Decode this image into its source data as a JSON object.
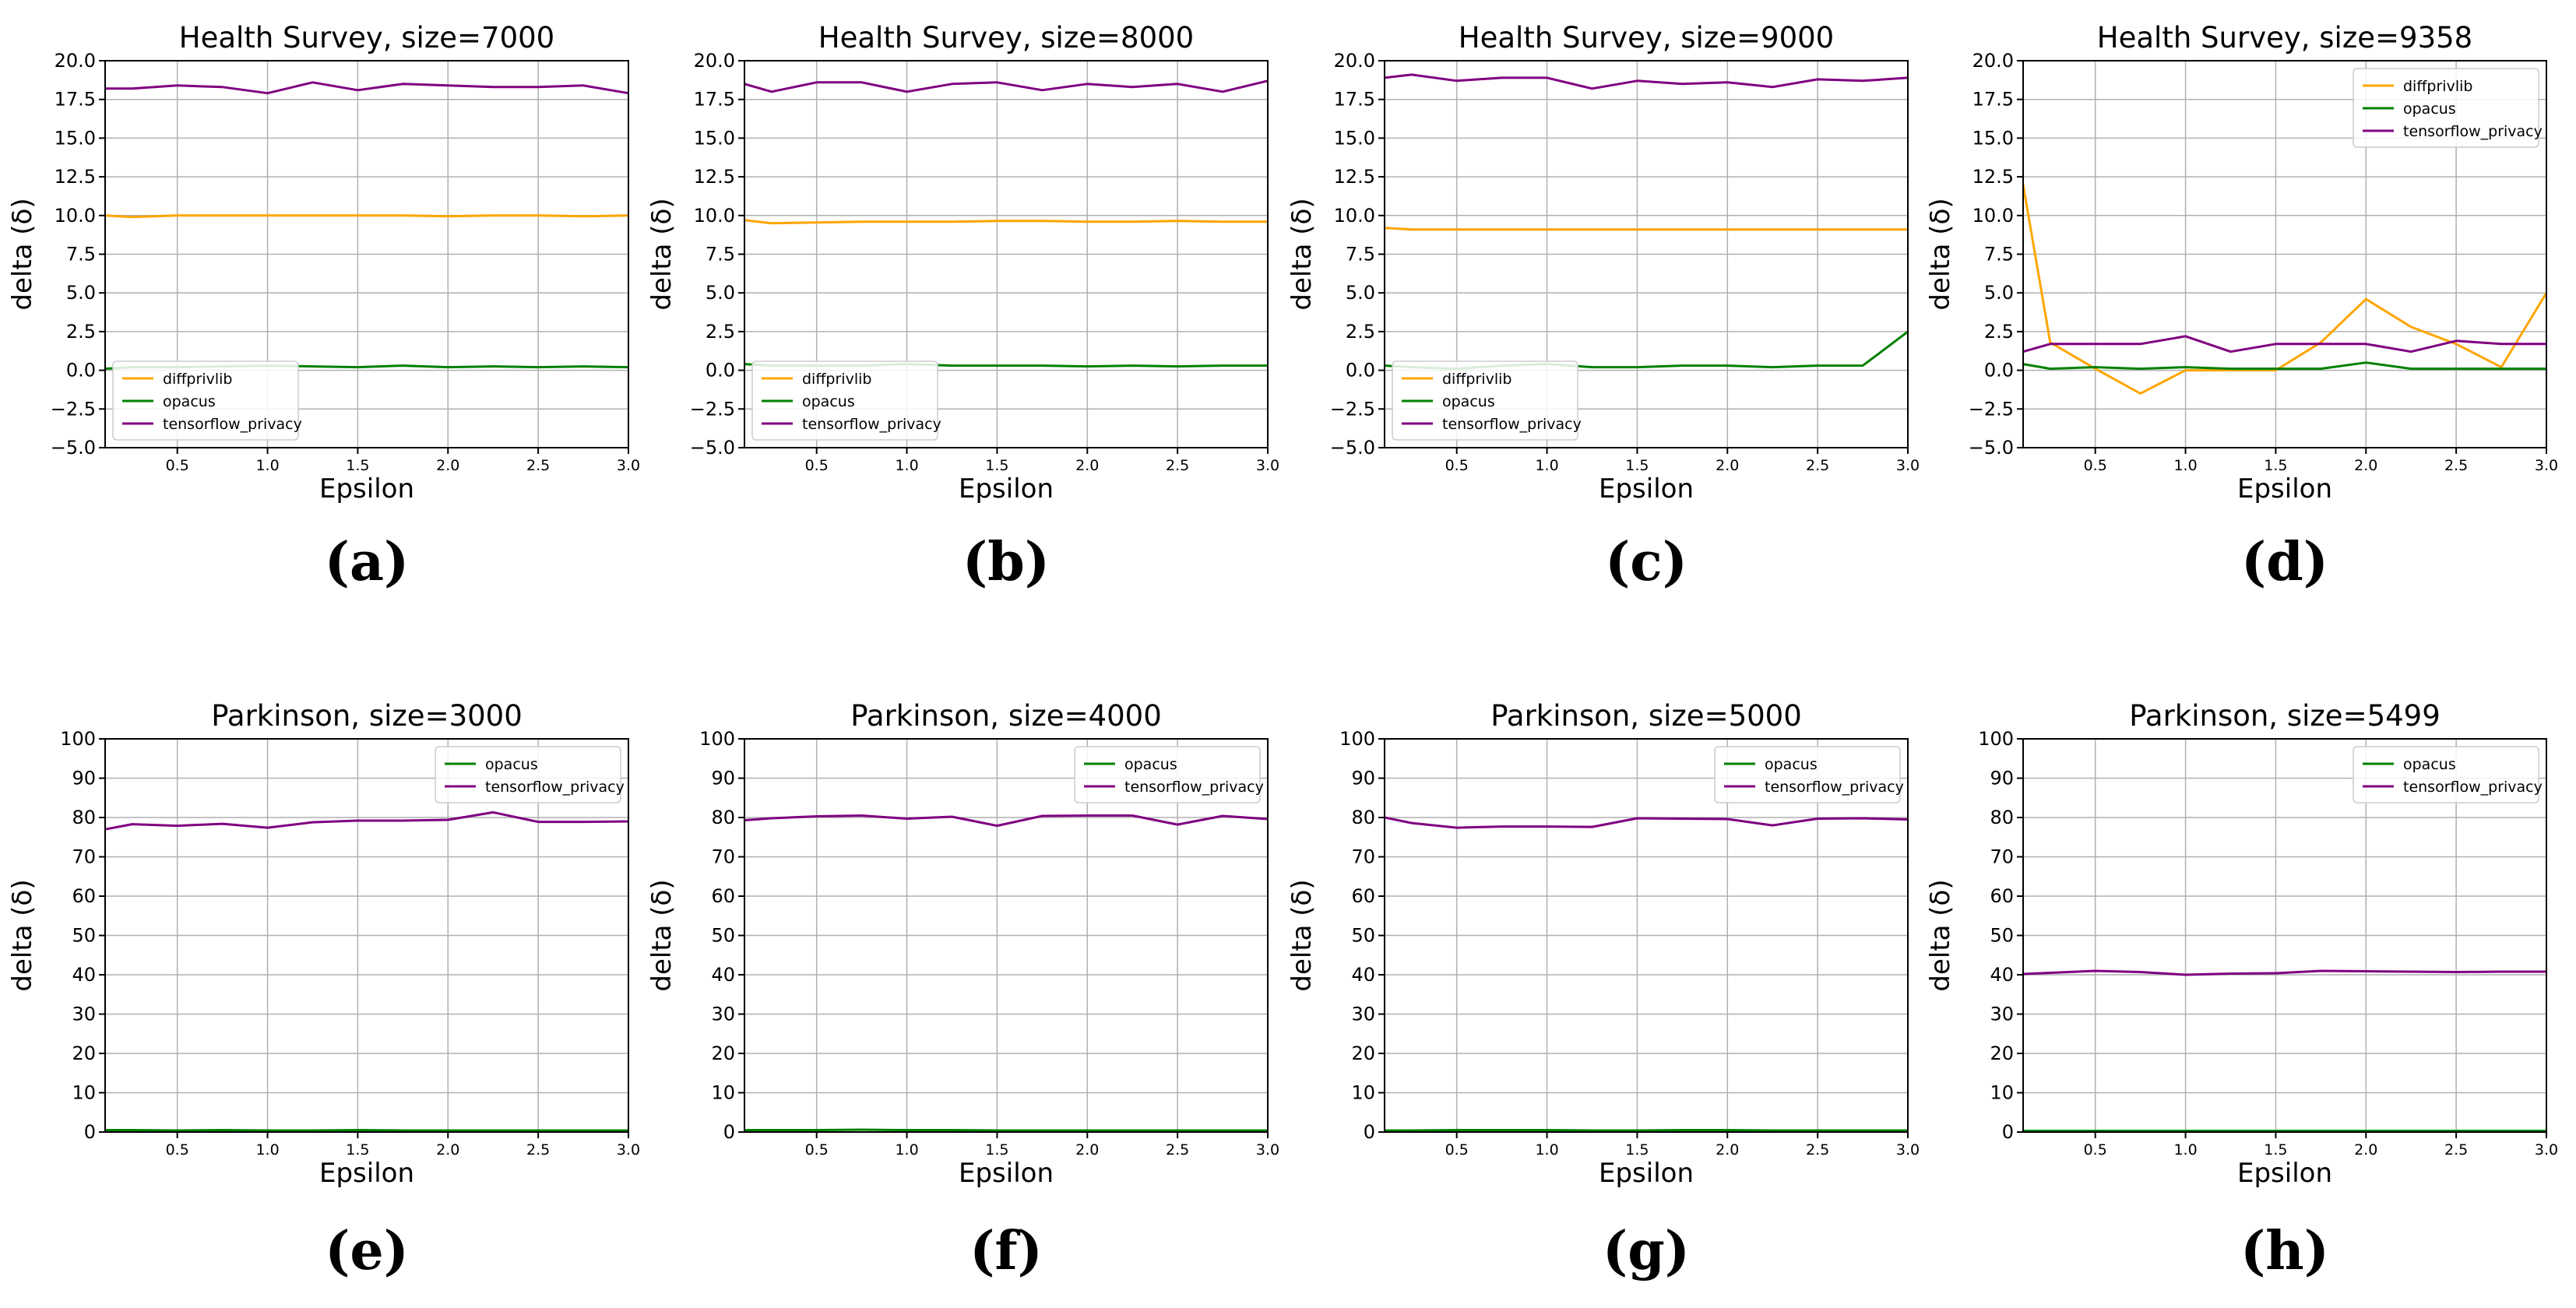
{
  "colors": {
    "diffprivlib": "#FFA500",
    "opacus": "#008000",
    "tensorflow_privacy": "#800080",
    "grid": "#b0b0b0"
  },
  "chart_data": [
    {
      "type": "line",
      "panel": "(a)",
      "title": "Health Survey, size=7000",
      "xlabel": "Epsilon",
      "ylabel": "delta (δ)",
      "xlim": [
        0.1,
        3.0
      ],
      "ylim": [
        -5.0,
        20.0
      ],
      "xticks": [
        "0.5",
        "1.0",
        "1.5",
        "2.0",
        "2.5",
        "3.0"
      ],
      "yticks": [
        "−5.0",
        "−2.5",
        "0.0",
        "2.5",
        "5.0",
        "7.5",
        "10.0",
        "12.5",
        "15.0",
        "17.5",
        "20.0"
      ],
      "grid": true,
      "legend": "lower-left",
      "x": [
        0.1,
        0.25,
        0.5,
        0.75,
        1.0,
        1.25,
        1.5,
        1.75,
        2.0,
        2.25,
        2.5,
        2.75,
        3.0
      ],
      "series": [
        {
          "name": "diffprivlib",
          "values": [
            10.0,
            9.9,
            10.0,
            10.0,
            10.0,
            10.0,
            10.0,
            10.0,
            9.95,
            10.0,
            10.0,
            9.95,
            10.0
          ]
        },
        {
          "name": "opacus",
          "values": [
            0.1,
            0.2,
            0.2,
            0.25,
            0.3,
            0.25,
            0.2,
            0.3,
            0.2,
            0.25,
            0.2,
            0.25,
            0.2
          ]
        },
        {
          "name": "tensorflow_privacy",
          "values": [
            18.2,
            18.2,
            18.4,
            18.3,
            17.9,
            18.6,
            18.1,
            18.5,
            18.4,
            18.3,
            18.3,
            18.4,
            17.9
          ]
        }
      ]
    },
    {
      "type": "line",
      "panel": "(b)",
      "title": "Health Survey, size=8000",
      "xlabel": "Epsilon",
      "ylabel": "delta (δ)",
      "xlim": [
        0.1,
        3.0
      ],
      "ylim": [
        -5.0,
        20.0
      ],
      "xticks": [
        "0.5",
        "1.0",
        "1.5",
        "2.0",
        "2.5",
        "3.0"
      ],
      "yticks": [
        "−5.0",
        "−2.5",
        "0.0",
        "2.5",
        "5.0",
        "7.5",
        "10.0",
        "12.5",
        "15.0",
        "17.5",
        "20.0"
      ],
      "grid": true,
      "legend": "lower-left",
      "x": [
        0.1,
        0.25,
        0.5,
        0.75,
        1.0,
        1.25,
        1.5,
        1.75,
        2.0,
        2.25,
        2.5,
        2.75,
        3.0
      ],
      "series": [
        {
          "name": "diffprivlib",
          "values": [
            9.7,
            9.5,
            9.55,
            9.6,
            9.6,
            9.6,
            9.65,
            9.65,
            9.6,
            9.6,
            9.65,
            9.6,
            9.6
          ]
        },
        {
          "name": "opacus",
          "values": [
            0.4,
            0.3,
            0.3,
            0.3,
            0.4,
            0.3,
            0.3,
            0.3,
            0.25,
            0.3,
            0.25,
            0.3,
            0.3
          ]
        },
        {
          "name": "tensorflow_privacy",
          "values": [
            18.5,
            18.0,
            18.6,
            18.6,
            18.0,
            18.5,
            18.6,
            18.1,
            18.5,
            18.3,
            18.5,
            18.0,
            18.7
          ]
        }
      ]
    },
    {
      "type": "line",
      "panel": "(c)",
      "title": "Health Survey, size=9000",
      "xlabel": "Epsilon",
      "ylabel": "delta (δ)",
      "xlim": [
        0.1,
        3.0
      ],
      "ylim": [
        -5.0,
        20.0
      ],
      "xticks": [
        "0.5",
        "1.0",
        "1.5",
        "2.0",
        "2.5",
        "3.0"
      ],
      "yticks": [
        "−5.0",
        "−2.5",
        "0.0",
        "2.5",
        "5.0",
        "7.5",
        "10.0",
        "12.5",
        "15.0",
        "17.5",
        "20.0"
      ],
      "grid": true,
      "legend": "lower-left",
      "x": [
        0.1,
        0.25,
        0.5,
        0.75,
        1.0,
        1.25,
        1.5,
        1.75,
        2.0,
        2.25,
        2.5,
        2.75,
        3.0
      ],
      "series": [
        {
          "name": "diffprivlib",
          "values": [
            9.2,
            9.1,
            9.1,
            9.1,
            9.1,
            9.1,
            9.1,
            9.1,
            9.1,
            9.1,
            9.1,
            9.1,
            9.1
          ]
        },
        {
          "name": "opacus",
          "values": [
            0.3,
            0.2,
            0.1,
            0.3,
            0.4,
            0.2,
            0.2,
            0.3,
            0.3,
            0.2,
            0.3,
            0.3,
            2.5
          ]
        },
        {
          "name": "tensorflow_privacy",
          "values": [
            18.9,
            19.1,
            18.7,
            18.9,
            18.9,
            18.2,
            18.7,
            18.5,
            18.6,
            18.3,
            18.8,
            18.7,
            18.9
          ]
        }
      ]
    },
    {
      "type": "line",
      "panel": "(d)",
      "title": "Health Survey, size=9358",
      "xlabel": "Epsilon",
      "ylabel": "delta (δ)",
      "xlim": [
        0.1,
        3.0
      ],
      "ylim": [
        -5.0,
        20.0
      ],
      "xticks": [
        "0.5",
        "1.0",
        "1.5",
        "2.0",
        "2.5",
        "3.0"
      ],
      "yticks": [
        "−5.0",
        "−2.5",
        "0.0",
        "2.5",
        "5.0",
        "7.5",
        "10.0",
        "12.5",
        "15.0",
        "17.5",
        "20.0"
      ],
      "grid": true,
      "legend": "top-right",
      "x": [
        0.1,
        0.25,
        0.5,
        0.75,
        1.0,
        1.25,
        1.5,
        1.75,
        2.0,
        2.25,
        2.5,
        2.75,
        3.0
      ],
      "series": [
        {
          "name": "diffprivlib",
          "values": [
            12.0,
            1.8,
            0.1,
            -1.5,
            0.0,
            0.0,
            0.0,
            1.8,
            4.6,
            2.8,
            1.7,
            0.2,
            5.0
          ]
        },
        {
          "name": "opacus",
          "values": [
            0.4,
            0.1,
            0.2,
            0.1,
            0.2,
            0.1,
            0.1,
            0.1,
            0.5,
            0.1,
            0.1,
            0.1,
            0.1
          ]
        },
        {
          "name": "tensorflow_privacy",
          "values": [
            1.2,
            1.7,
            1.7,
            1.7,
            2.2,
            1.2,
            1.7,
            1.7,
            1.7,
            1.2,
            1.9,
            1.7,
            1.7
          ]
        }
      ]
    },
    {
      "type": "line",
      "panel": "(e)",
      "title": "Parkinson, size=3000",
      "xlabel": "Epsilon",
      "ylabel": "delta (δ)",
      "xlim": [
        0.1,
        3.0
      ],
      "ylim": [
        0,
        100
      ],
      "xticks": [
        "0.5",
        "1.0",
        "1.5",
        "2.0",
        "2.5",
        "3.0"
      ],
      "yticks": [
        "0",
        "10",
        "20",
        "30",
        "40",
        "50",
        "60",
        "70",
        "80",
        "90",
        "100"
      ],
      "grid": true,
      "legend": "top-right",
      "x": [
        0.1,
        0.25,
        0.5,
        0.75,
        1.0,
        1.25,
        1.5,
        1.75,
        2.0,
        2.25,
        2.5,
        2.75,
        3.0
      ],
      "series": [
        {
          "name": "opacus",
          "values": [
            0.5,
            0.5,
            0.4,
            0.5,
            0.4,
            0.4,
            0.5,
            0.4,
            0.4,
            0.4,
            0.4,
            0.4,
            0.4
          ]
        },
        {
          "name": "tensorflow_privacy",
          "values": [
            77,
            78.3,
            77.9,
            78.4,
            77.4,
            78.8,
            79.2,
            79.2,
            79.4,
            81.3,
            78.9,
            78.9,
            79.0
          ]
        }
      ]
    },
    {
      "type": "line",
      "panel": "(f)",
      "title": "Parkinson, size=4000",
      "xlabel": "Epsilon",
      "ylabel": "delta (δ)",
      "xlim": [
        0.1,
        3.0
      ],
      "ylim": [
        0,
        100
      ],
      "xticks": [
        "0.5",
        "1.0",
        "1.5",
        "2.0",
        "2.5",
        "3.0"
      ],
      "yticks": [
        "0",
        "10",
        "20",
        "30",
        "40",
        "50",
        "60",
        "70",
        "80",
        "90",
        "100"
      ],
      "grid": true,
      "legend": "top-right",
      "x": [
        0.1,
        0.25,
        0.5,
        0.75,
        1.0,
        1.25,
        1.5,
        1.75,
        2.0,
        2.25,
        2.5,
        2.75,
        3.0
      ],
      "series": [
        {
          "name": "opacus",
          "values": [
            0.5,
            0.5,
            0.5,
            0.6,
            0.5,
            0.5,
            0.4,
            0.4,
            0.4,
            0.4,
            0.4,
            0.4,
            0.4
          ]
        },
        {
          "name": "tensorflow_privacy",
          "values": [
            79.3,
            79.8,
            80.3,
            80.5,
            79.7,
            80.2,
            77.9,
            80.4,
            80.5,
            80.5,
            78.2,
            80.4,
            79.6
          ]
        }
      ]
    },
    {
      "type": "line",
      "panel": "(g)",
      "title": "Parkinson, size=5000",
      "xlabel": "Epsilon",
      "ylabel": "delta (δ)",
      "xlim": [
        0.1,
        3.0
      ],
      "ylim": [
        0,
        100
      ],
      "xticks": [
        "0.5",
        "1.0",
        "1.5",
        "2.0",
        "2.5",
        "3.0"
      ],
      "yticks": [
        "0",
        "10",
        "20",
        "30",
        "40",
        "50",
        "60",
        "70",
        "80",
        "90",
        "100"
      ],
      "grid": true,
      "legend": "top-right",
      "x": [
        0.1,
        0.25,
        0.5,
        0.75,
        1.0,
        1.25,
        1.5,
        1.75,
        2.0,
        2.25,
        2.5,
        2.75,
        3.0
      ],
      "series": [
        {
          "name": "opacus",
          "values": [
            0.4,
            0.4,
            0.5,
            0.5,
            0.5,
            0.4,
            0.4,
            0.5,
            0.5,
            0.4,
            0.4,
            0.4,
            0.4
          ]
        },
        {
          "name": "tensorflow_privacy",
          "values": [
            80.0,
            78.6,
            77.4,
            77.7,
            77.7,
            77.6,
            79.8,
            79.7,
            79.6,
            78.0,
            79.7,
            79.8,
            79.5
          ]
        }
      ]
    },
    {
      "type": "line",
      "panel": "(h)",
      "title": "Parkinson, size=5499",
      "xlabel": "Epsilon",
      "ylabel": "delta (δ)",
      "xlim": [
        0.1,
        3.0
      ],
      "ylim": [
        0,
        100
      ],
      "xticks": [
        "0.5",
        "1.0",
        "1.5",
        "2.0",
        "2.5",
        "3.0"
      ],
      "yticks": [
        "0",
        "10",
        "20",
        "30",
        "40",
        "50",
        "60",
        "70",
        "80",
        "90",
        "100"
      ],
      "grid": true,
      "legend": "top-right",
      "x": [
        0.1,
        0.25,
        0.5,
        0.75,
        1.0,
        1.25,
        1.5,
        1.75,
        2.0,
        2.25,
        2.5,
        2.75,
        3.0
      ],
      "series": [
        {
          "name": "opacus",
          "values": [
            0.3,
            0.3,
            0.3,
            0.3,
            0.3,
            0.3,
            0.3,
            0.3,
            0.3,
            0.3,
            0.3,
            0.3,
            0.3
          ]
        },
        {
          "name": "tensorflow_privacy",
          "values": [
            40.2,
            40.5,
            41.0,
            40.7,
            40.0,
            40.3,
            40.4,
            41.0,
            40.9,
            40.8,
            40.7,
            40.8,
            40.8
          ]
        }
      ]
    }
  ]
}
